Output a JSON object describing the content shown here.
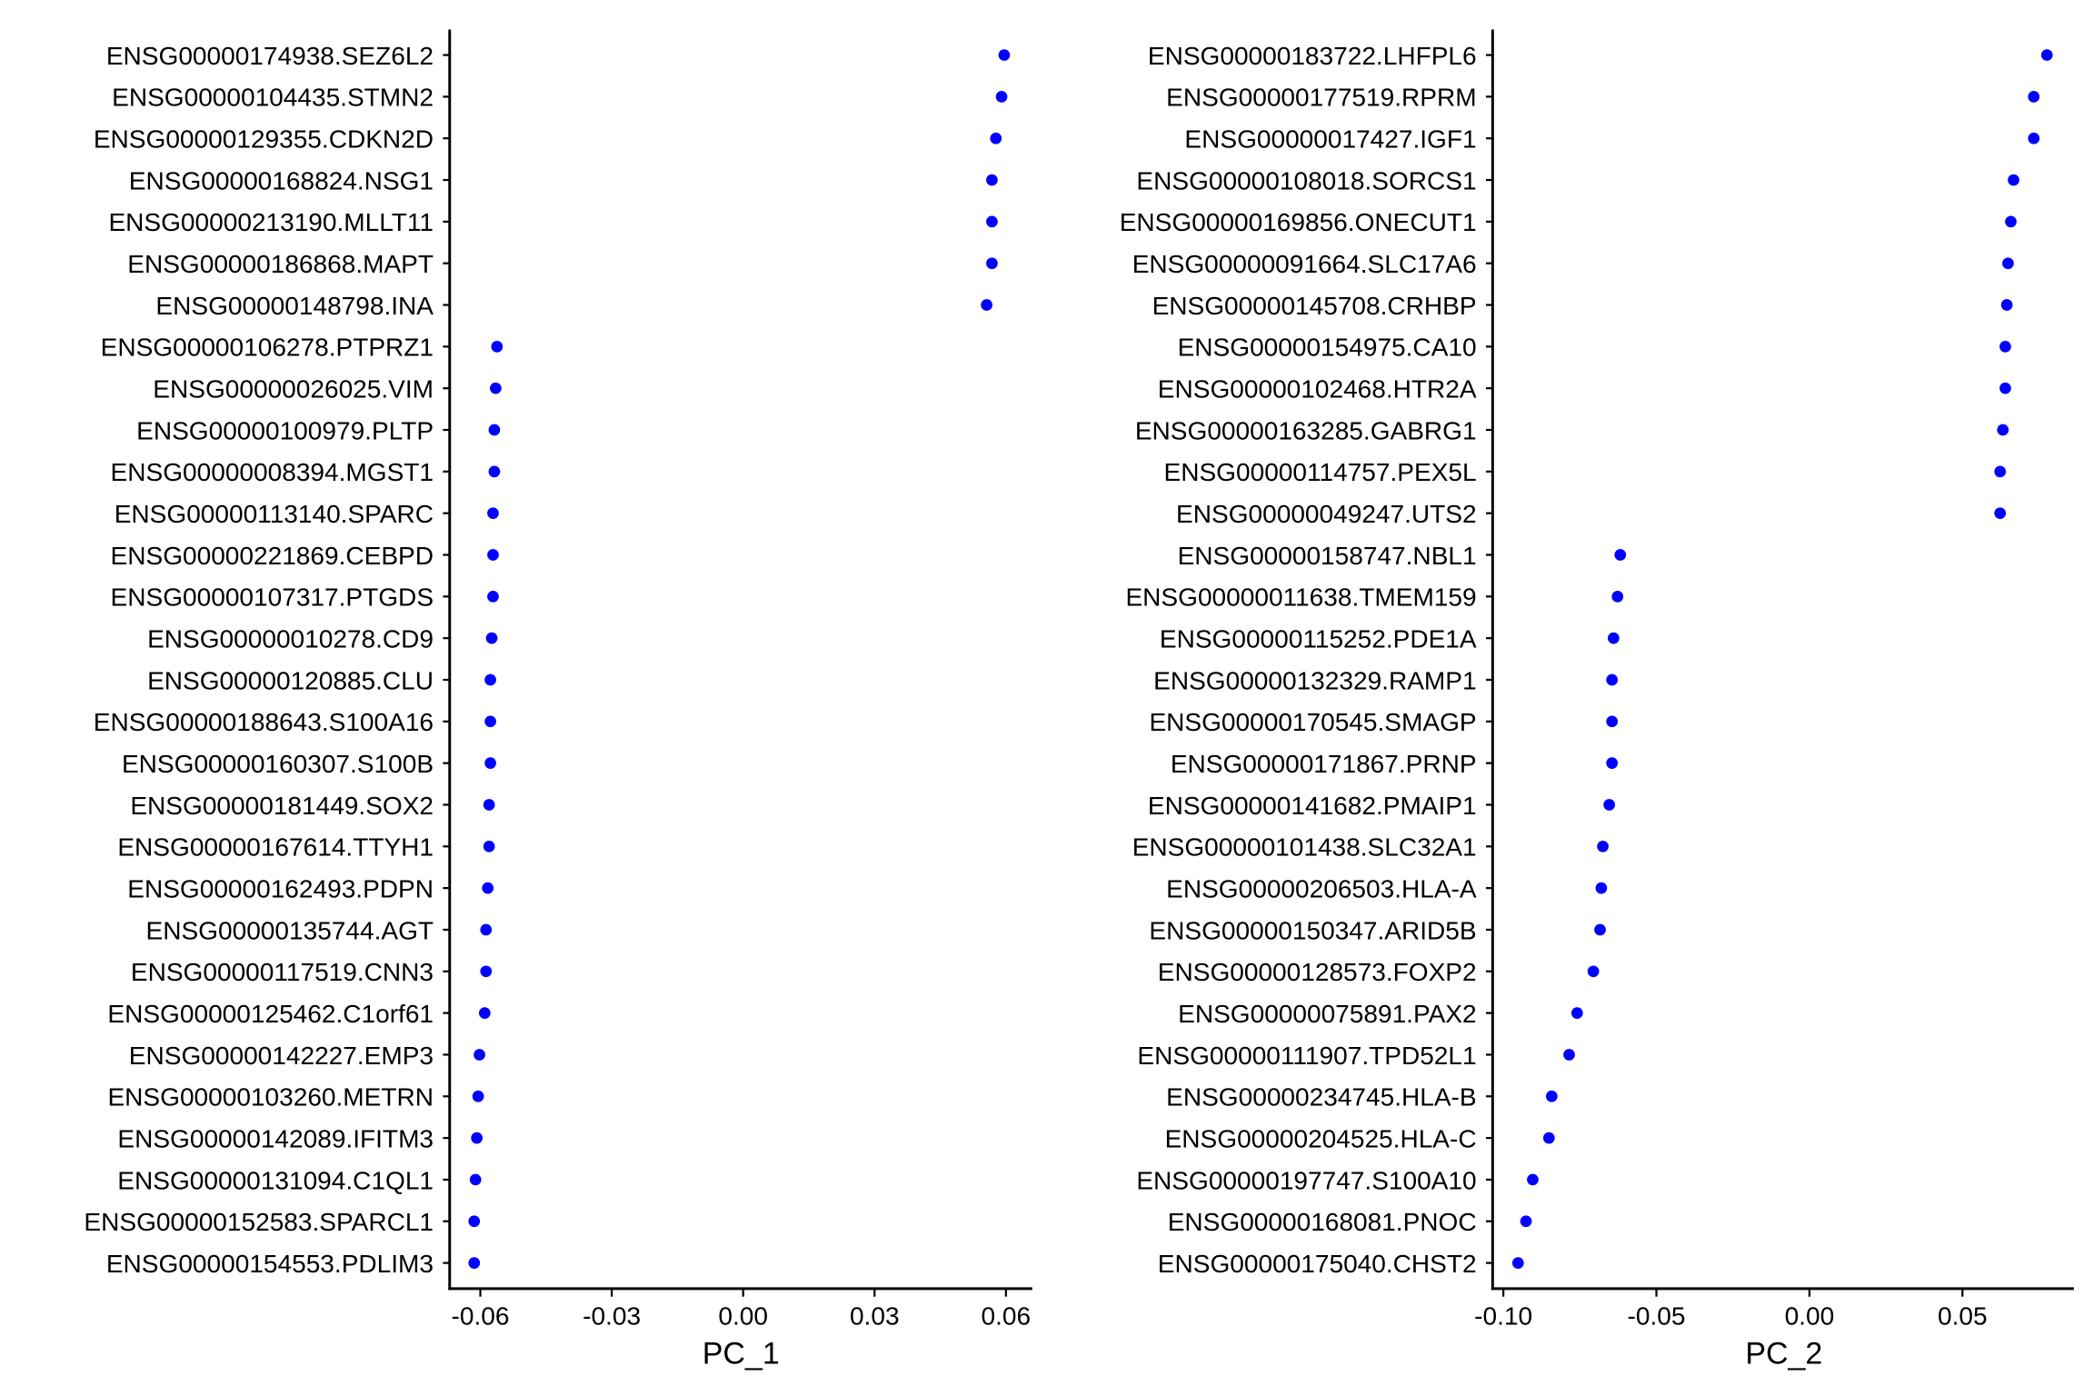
{
  "point_color": "#0000FF",
  "chart_data": [
    {
      "type": "scatter",
      "xlabel": "PC_1",
      "ylabel": "",
      "xlim": [
        -0.067,
        0.066
      ],
      "xticks": [
        -0.06,
        -0.03,
        0.0,
        0.03,
        0.06
      ],
      "xtick_labels": [
        "-0.06",
        "-0.03",
        "0.00",
        "0.03",
        "0.06"
      ],
      "grid": false,
      "genes": [
        "ENSG00000174938.SEZ6L2",
        "ENSG00000104435.STMN2",
        "ENSG00000129355.CDKN2D",
        "ENSG00000168824.NSG1",
        "ENSG00000213190.MLLT11",
        "ENSG00000186868.MAPT",
        "ENSG00000148798.INA",
        "ENSG00000106278.PTPRZ1",
        "ENSG00000026025.VIM",
        "ENSG00000100979.PLTP",
        "ENSG00000008394.MGST1",
        "ENSG00000113140.SPARC",
        "ENSG00000221869.CEBPD",
        "ENSG00000107317.PTGDS",
        "ENSG00000010278.CD9",
        "ENSG00000120885.CLU",
        "ENSG00000188643.S100A16",
        "ENSG00000160307.S100B",
        "ENSG00000181449.SOX2",
        "ENSG00000167614.TTYH1",
        "ENSG00000162493.PDPN",
        "ENSG00000135744.AGT",
        "ENSG00000117519.CNN3",
        "ENSG00000125462.C1orf61",
        "ENSG00000142227.EMP3",
        "ENSG00000103260.METRN",
        "ENSG00000142089.IFITM3",
        "ENSG00000131094.C1QL1",
        "ENSG00000152583.SPARCL1",
        "ENSG00000154553.PDLIM3"
      ],
      "values": [
        0.0596,
        0.059,
        0.0577,
        0.0568,
        0.0568,
        0.0568,
        0.0556,
        -0.0562,
        -0.0565,
        -0.0568,
        -0.0568,
        -0.0571,
        -0.0571,
        -0.0571,
        -0.0574,
        -0.0577,
        -0.0577,
        -0.0577,
        -0.058,
        -0.058,
        -0.0583,
        -0.0587,
        -0.0587,
        -0.059,
        -0.0602,
        -0.0605,
        -0.0608,
        -0.0611,
        -0.0614,
        -0.0614
      ]
    },
    {
      "type": "scatter",
      "xlabel": "PC_2",
      "ylabel": "",
      "xlim": [
        -0.1035,
        0.0864
      ],
      "xticks": [
        -0.1,
        -0.05,
        0.0,
        0.05
      ],
      "xtick_labels": [
        "-0.10",
        "-0.05",
        "0.00",
        "0.05"
      ],
      "grid": false,
      "genes": [
        "ENSG00000183722.LHFPL6",
        "ENSG00000177519.RPRM",
        "ENSG00000017427.IGF1",
        "ENSG00000108018.SORCS1",
        "ENSG00000169856.ONECUT1",
        "ENSG00000091664.SLC17A6",
        "ENSG00000145708.CRHBP",
        "ENSG00000154975.CA10",
        "ENSG00000102468.HTR2A",
        "ENSG00000163285.GABRG1",
        "ENSG00000114757.PEX5L",
        "ENSG00000049247.UTS2",
        "ENSG00000158747.NBL1",
        "ENSG00000011638.TMEM159",
        "ENSG00000115252.PDE1A",
        "ENSG00000132329.RAMP1",
        "ENSG00000170545.SMAGP",
        "ENSG00000171867.PRNP",
        "ENSG00000141682.PMAIP1",
        "ENSG00000101438.SLC32A1",
        "ENSG00000206503.HLA-A",
        "ENSG00000150347.ARID5B",
        "ENSG00000128573.FOXP2",
        "ENSG00000075891.PAX2",
        "ENSG00000111907.TPD52L1",
        "ENSG00000234745.HLA-B",
        "ENSG00000204525.HLA-C",
        "ENSG00000197747.S100A10",
        "ENSG00000168081.PNOC",
        "ENSG00000175040.CHST2"
      ],
      "values": [
        0.0776,
        0.0733,
        0.0733,
        0.0667,
        0.0658,
        0.0649,
        0.0645,
        0.064,
        0.064,
        0.0632,
        0.0623,
        0.0623,
        -0.0618,
        -0.0627,
        -0.064,
        -0.0645,
        -0.0645,
        -0.0645,
        -0.0654,
        -0.0675,
        -0.068,
        -0.0684,
        -0.0706,
        -0.0759,
        -0.0785,
        -0.0842,
        -0.0851,
        -0.0904,
        -0.0926,
        -0.0952
      ]
    }
  ]
}
